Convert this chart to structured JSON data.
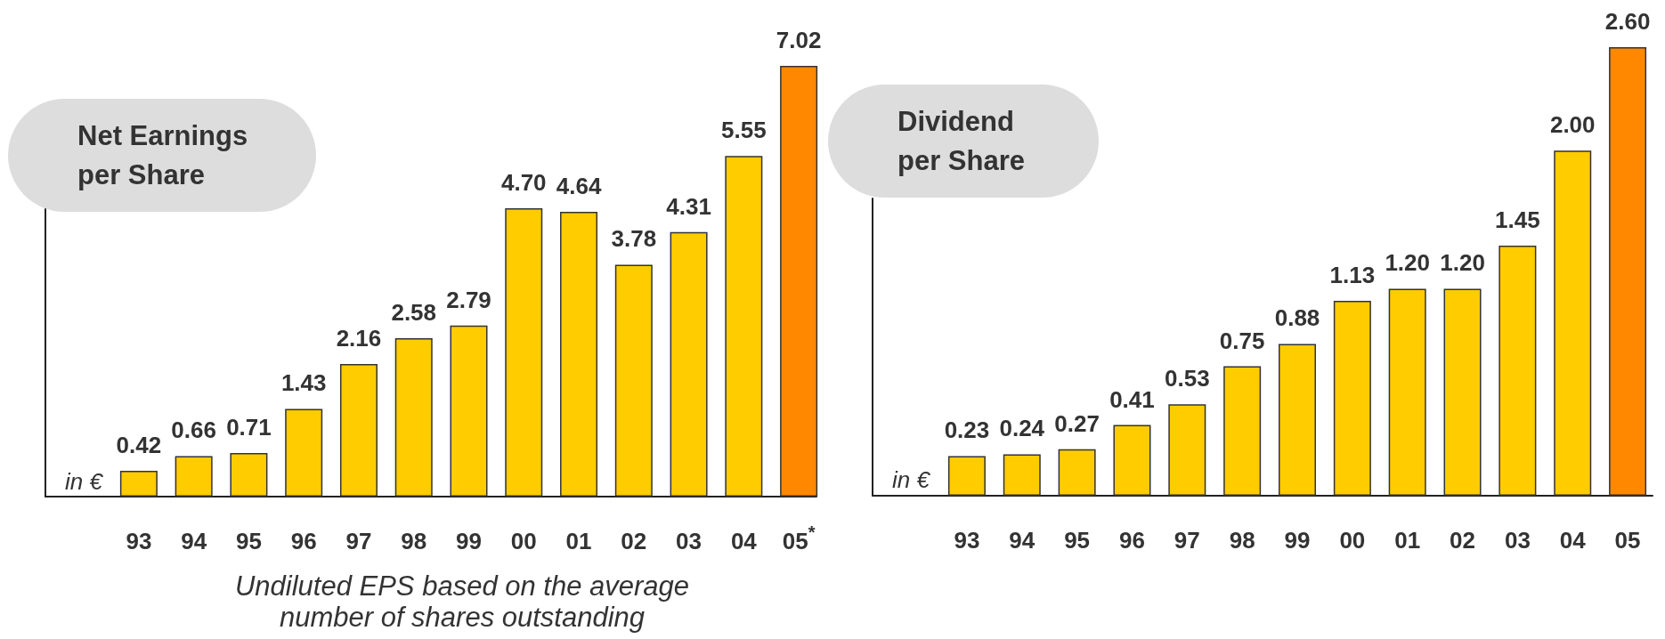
{
  "chart_data": [
    {
      "type": "bar",
      "title": "Net Earnings per Share",
      "ylabel": "in €",
      "categories": [
        "93",
        "94",
        "95",
        "96",
        "97",
        "98",
        "99",
        "00",
        "01",
        "02",
        "03",
        "04",
        "05$^{*}$"
      ],
      "values": [
        0.42,
        0.66,
        0.71,
        1.43,
        2.16,
        2.58,
        2.79,
        4.7,
        4.64,
        3.78,
        4.31,
        5.55,
        7.02
      ],
      "value_labels": [
        "0.42",
        "0.66",
        "0.71",
        "1.43",
        "2.16",
        "2.58",
        "2.79",
        "4.70",
        "4.64",
        "3.78",
        "4.31",
        "5.55",
        "7.02"
      ],
      "colors": [
        "#ffcc00",
        "#ffcc00",
        "#ffcc00",
        "#ffcc00",
        "#ffcc00",
        "#ffcc00",
        "#ffcc00",
        "#ffcc00",
        "#ffcc00",
        "#ffcc00",
        "#ffcc00",
        "#ffcc00",
        "#ff8800"
      ],
      "tick_labels": "x",
      "annotations": [
        "Undiluted EPS based on the average number of shares outstanding"
      ]
    },
    {
      "type": "bar",
      "title": "Dividend per Share",
      "ylabel": "in €",
      "categories": [
        "93",
        "94",
        "95",
        "96",
        "97",
        "98",
        "99",
        "00",
        "01",
        "02",
        "03",
        "04",
        "05"
      ],
      "values": [
        0.23,
        0.24,
        0.27,
        0.41,
        0.53,
        0.75,
        0.88,
        1.13,
        1.2,
        1.2,
        1.45,
        2.0,
        2.6
      ],
      "value_labels": [
        "0.23",
        "0.24",
        "0.27",
        "0.41",
        "0.53",
        "0.75",
        "0.88",
        "1.13",
        "1.20",
        "1.20",
        "1.45",
        "2.00",
        "2.60"
      ],
      "colors": [
        "#ffcc00",
        "#ffcc00",
        "#ffcc00",
        "#ffcc00",
        "#ffcc00",
        "#ffcc00",
        "#ffcc00",
        "#ffcc00",
        "#ffcc00",
        "#ffcc00",
        "#ffcc00",
        "#ffcc00",
        "#ff8800"
      ],
      "tick_labels": "x"
    }
  ]
}
